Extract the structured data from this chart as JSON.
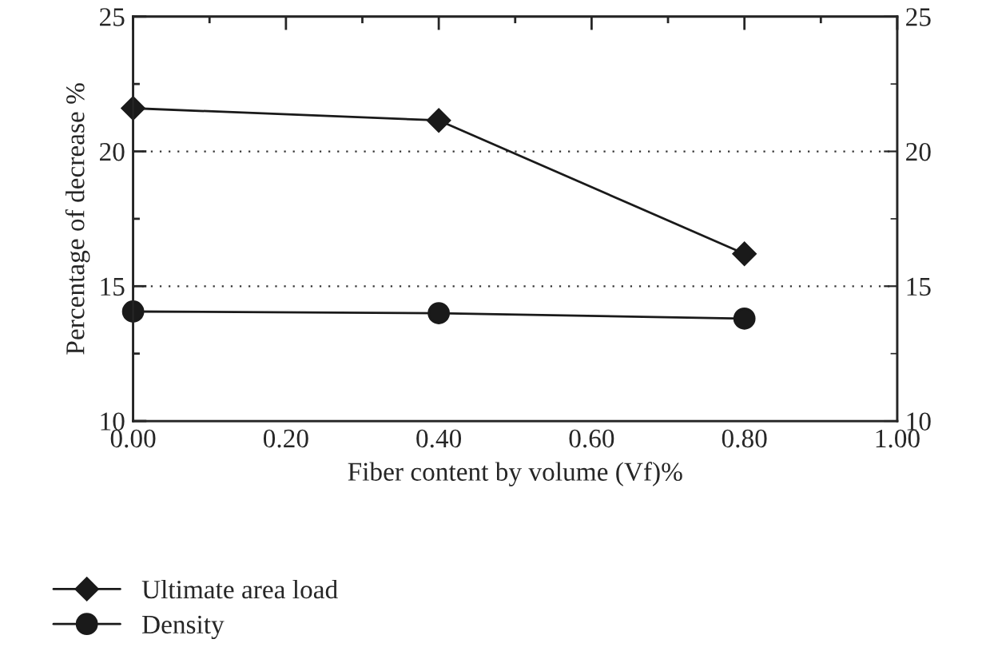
{
  "chart_data": {
    "type": "line",
    "xlabel": "Fiber content by volume (Vf)%",
    "ylabel": "Percentage of decrease %",
    "x": [
      0.0,
      0.4,
      0.8
    ],
    "series": [
      {
        "name": "Ultimate area load",
        "color": "#1a1a1a",
        "marker": "diamond",
        "values": [
          21.6,
          21.15,
          16.2
        ]
      },
      {
        "name": "Density",
        "color": "#1a1a1a",
        "marker": "circle",
        "values": [
          14.06,
          14.0,
          13.8
        ]
      }
    ],
    "xlim": [
      0,
      1
    ],
    "xticks": [
      {
        "value": 0,
        "label": "0.00"
      },
      {
        "value": 0.2,
        "label": "0.20"
      },
      {
        "value": 0.4,
        "label": "0.40"
      },
      {
        "value": 0.6,
        "label": "0.60"
      },
      {
        "value": 0.8,
        "label": "0.80"
      },
      {
        "value": 1.0,
        "label": "1.00"
      }
    ],
    "ylim": [
      10,
      25
    ],
    "yticks": [
      10,
      15,
      20,
      25
    ],
    "y2lim": [
      10,
      25
    ],
    "y2ticks": [
      10,
      15,
      20,
      25
    ],
    "grid": "y",
    "legend": "bottom",
    "line_style": "solid"
  }
}
